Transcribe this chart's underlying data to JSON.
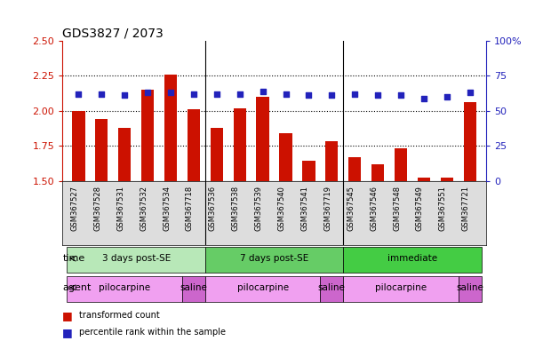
{
  "title": "GDS3827 / 2073",
  "samples": [
    "GSM367527",
    "GSM367528",
    "GSM367531",
    "GSM367532",
    "GSM367534",
    "GSM367718",
    "GSM367536",
    "GSM367538",
    "GSM367539",
    "GSM367540",
    "GSM367541",
    "GSM367719",
    "GSM367545",
    "GSM367546",
    "GSM367548",
    "GSM367549",
    "GSM367551",
    "GSM367721"
  ],
  "red_values": [
    2.0,
    1.94,
    1.88,
    2.15,
    2.26,
    2.01,
    1.88,
    2.02,
    2.1,
    1.84,
    1.64,
    1.78,
    1.67,
    1.62,
    1.73,
    1.52,
    1.52,
    2.06
  ],
  "blue_values": [
    62,
    62,
    61,
    63,
    63,
    62,
    62,
    62,
    64,
    62,
    61,
    61,
    62,
    61,
    61,
    59,
    60,
    63
  ],
  "ylim_left": [
    1.5,
    2.5
  ],
  "ylim_right": [
    0,
    100
  ],
  "yticks_left": [
    1.5,
    1.75,
    2.0,
    2.25,
    2.5
  ],
  "yticks_right": [
    0,
    25,
    50,
    75,
    100
  ],
  "grid_values": [
    1.75,
    2.0,
    2.25
  ],
  "time_groups": [
    {
      "label": "3 days post-SE",
      "start": 0,
      "end": 6,
      "color": "#b8e8b8"
    },
    {
      "label": "7 days post-SE",
      "start": 6,
      "end": 12,
      "color": "#66cc66"
    },
    {
      "label": "immediate",
      "start": 12,
      "end": 18,
      "color": "#44cc44"
    }
  ],
  "agent_groups": [
    {
      "label": "pilocarpine",
      "start": 0,
      "end": 5,
      "color": "#f0a0f0"
    },
    {
      "label": "saline",
      "start": 5,
      "end": 6,
      "color": "#cc66cc"
    },
    {
      "label": "pilocarpine",
      "start": 6,
      "end": 11,
      "color": "#f0a0f0"
    },
    {
      "label": "saline",
      "start": 11,
      "end": 12,
      "color": "#cc66cc"
    },
    {
      "label": "pilocarpine",
      "start": 12,
      "end": 17,
      "color": "#f0a0f0"
    },
    {
      "label": "saline",
      "start": 17,
      "end": 18,
      "color": "#cc66cc"
    }
  ],
  "bar_color": "#cc1100",
  "dot_color": "#2222bb",
  "bar_bottom": 1.5,
  "legend_items": [
    {
      "label": "transformed count",
      "color": "#cc1100"
    },
    {
      "label": "percentile rank within the sample",
      "color": "#2222bb"
    }
  ],
  "time_label": "time",
  "agent_label": "agent",
  "left_axis_color": "#cc1100",
  "right_axis_color": "#2222bb",
  "sample_bg_color": "#dddddd",
  "group_dividers": [
    5.5,
    11.5
  ]
}
